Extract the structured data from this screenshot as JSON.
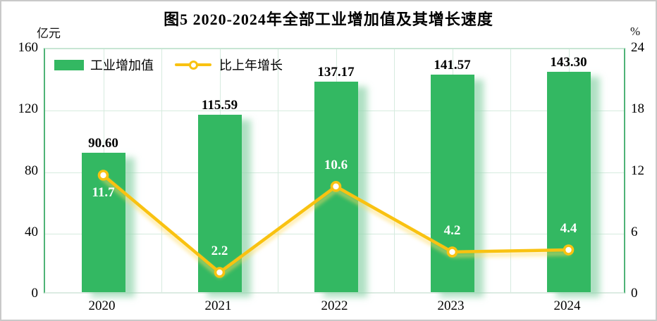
{
  "title": "图5 2020-2024年全部工业增加值及其增长速度",
  "left_axis": {
    "unit": "亿元",
    "ticks": [
      160,
      120,
      80,
      40,
      0
    ],
    "max": 160
  },
  "right_axis": {
    "unit": "%",
    "ticks": [
      24,
      18,
      12,
      6,
      0
    ],
    "max": 24
  },
  "legend": {
    "items": [
      {
        "label": "工业增加值",
        "marker": "green-bar-swatch"
      },
      {
        "label": "比上年增长",
        "marker": "yellow-line-circle-marker"
      }
    ],
    "position": "top-left"
  },
  "chart_data": {
    "type": "bar",
    "subtype": "bar+line combo, dual axis",
    "title": "图5 2020-2024年全部工业增加值及其增长速度",
    "categories": [
      "2020",
      "2021",
      "2022",
      "2023",
      "2024"
    ],
    "series": [
      {
        "name": "工业增加值",
        "type": "bar",
        "axis": "left",
        "unit": "亿元",
        "values": [
          90.6,
          115.59,
          137.17,
          141.57,
          143.3
        ],
        "labels": [
          "90.60",
          "115.59",
          "137.17",
          "141.57",
          "143.30"
        ]
      },
      {
        "name": "比上年增长",
        "type": "line",
        "axis": "right",
        "unit": "%",
        "values": [
          11.7,
          2.2,
          10.6,
          4.2,
          4.4
        ],
        "labels": [
          "11.7",
          "2.2",
          "10.6",
          "4.2",
          "4.4"
        ]
      }
    ],
    "left_ylim": [
      0,
      160
    ],
    "right_ylim": [
      0,
      24
    ],
    "grid": true,
    "legend_position": "top-left"
  },
  "colors": {
    "bar": "#33b862",
    "line": "#f9c211",
    "line_glow": "#ffdd66",
    "grid": "#d6ebdf",
    "grid_strong": "#c7e6d4",
    "grid_soft": "#dcebe2",
    "axis_green": "#4fb377",
    "bar_label": "#000000",
    "line_label": "#ffffff",
    "frame_border": "#c9c9c9"
  }
}
